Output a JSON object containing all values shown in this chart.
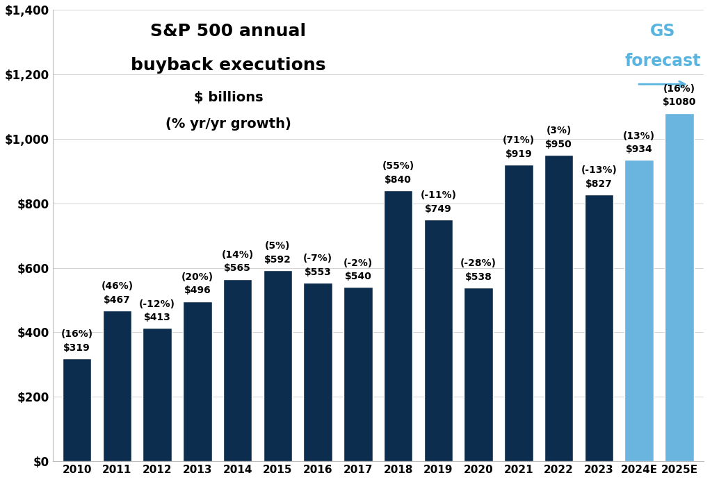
{
  "categories": [
    "2010",
    "2011",
    "2012",
    "2013",
    "2014",
    "2015",
    "2016",
    "2017",
    "2018",
    "2019",
    "2020",
    "2021",
    "2022",
    "2023",
    "2024E",
    "2025E"
  ],
  "values": [
    319,
    467,
    413,
    496,
    565,
    592,
    553,
    540,
    840,
    749,
    538,
    919,
    950,
    827,
    934,
    1080
  ],
  "labels_line1": [
    "$319",
    "$467",
    "$413",
    "$496",
    "$565",
    "$592",
    "$553",
    "$540",
    "$840",
    "$749",
    "$538",
    "$919",
    "$950",
    "$827",
    "$934",
    "$1080"
  ],
  "labels_line2": [
    "(16%)",
    "(46%)",
    "(-12%)",
    "(20%)",
    "(14%)",
    "(5%)",
    "(-7%)",
    "(-2%)",
    "(55%)",
    "(-11%)",
    "(-28%)",
    "(71%)",
    "(3%)",
    "(-13%)",
    "(13%)",
    "(16%)"
  ],
  "dark_color": "#0d2d4e",
  "light_color": "#6ab4e0",
  "gs_forecast_color": "#5ab4e0",
  "title_line1": "S&P 500 annual",
  "title_line2": "buyback executions",
  "title_line3": "$ billions",
  "title_line4": "(% yr/yr growth)",
  "ylim": [
    0,
    1400
  ],
  "yticks": [
    0,
    200,
    400,
    600,
    800,
    1000,
    1200,
    1400
  ],
  "ytick_labels": [
    "$0",
    "$200",
    "$400",
    "$600",
    "$800",
    "$1,000",
    "$1,200",
    "$1,400"
  ],
  "background_color": "#ffffff",
  "label_fontsize": 10,
  "title_fontsize_main": 18,
  "title_fontsize_sub": 14,
  "n_dark": 14,
  "n_light": 2
}
